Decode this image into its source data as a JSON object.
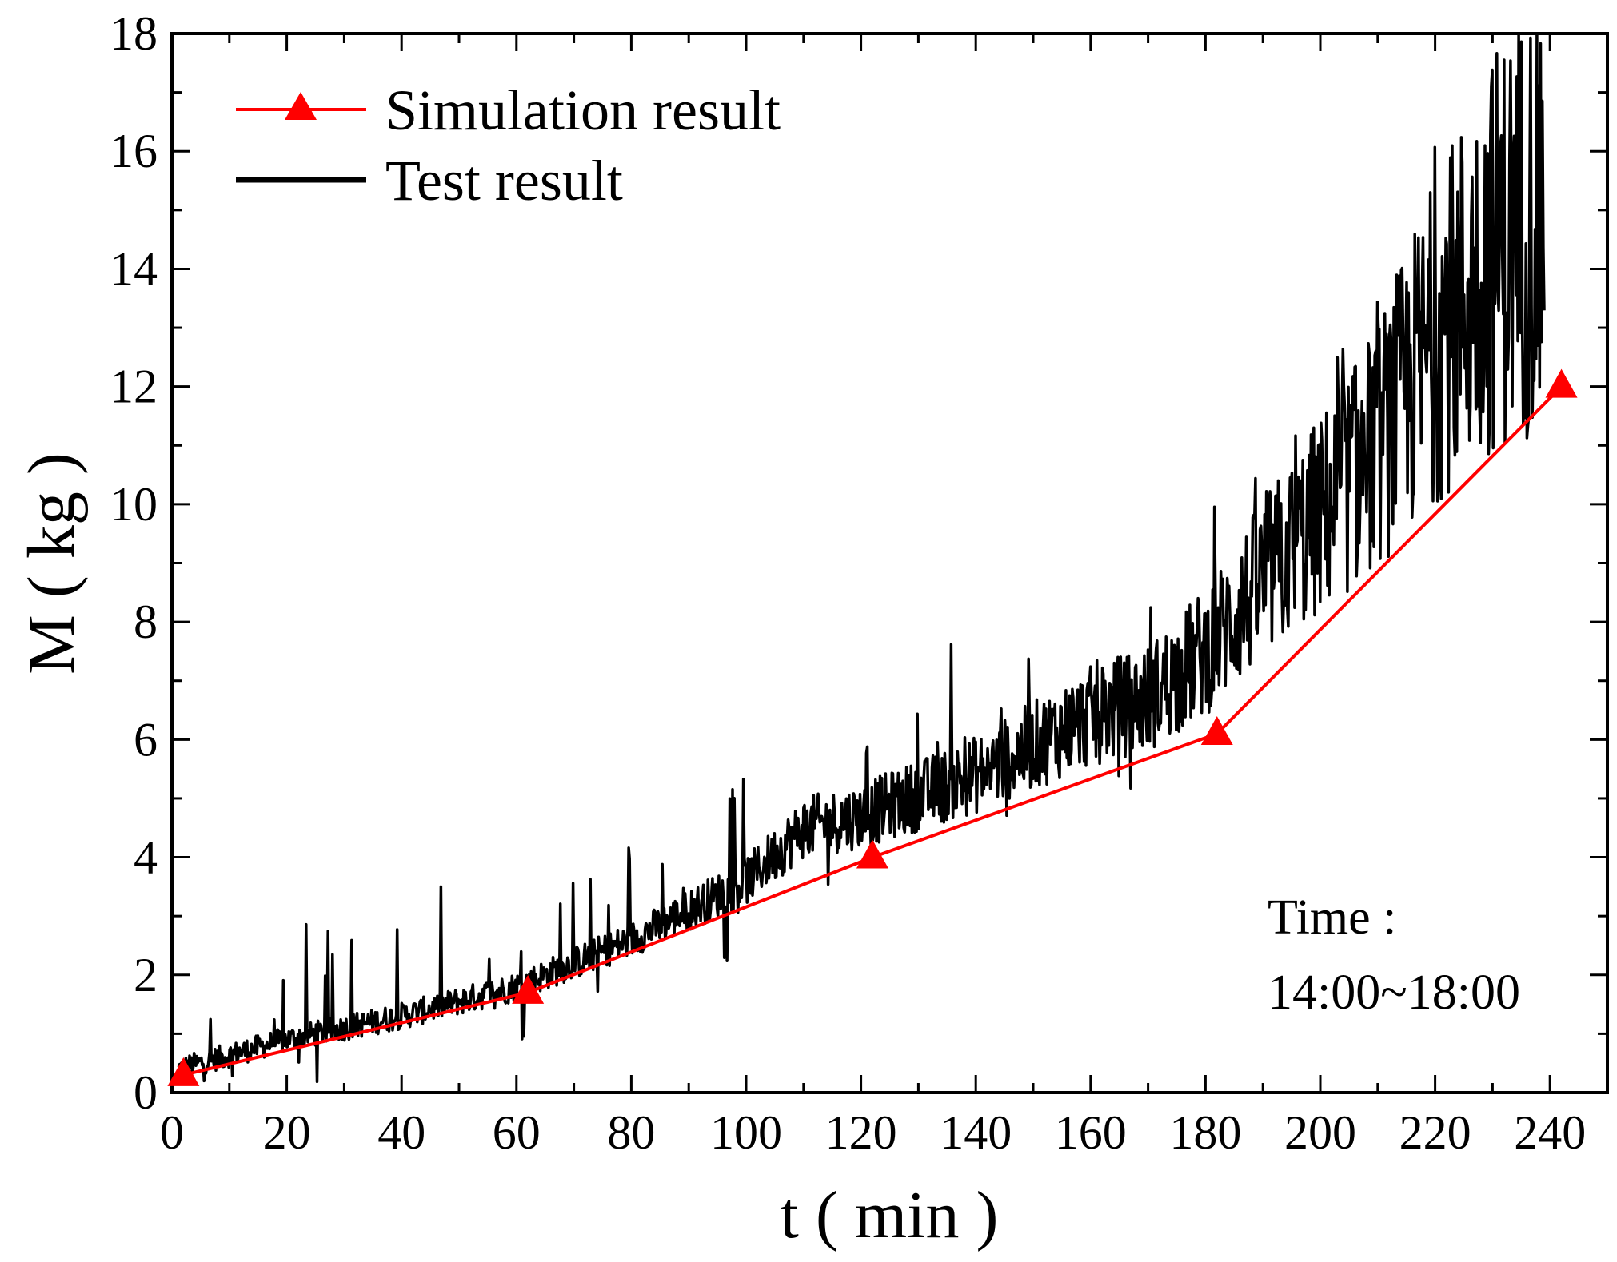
{
  "chart_data": {
    "type": "line",
    "title": "",
    "xlabel": "t ( min )",
    "ylabel": "M ( kg )",
    "xlim": [
      0,
      250
    ],
    "ylim": [
      0,
      18
    ],
    "xticks": [
      0,
      20,
      40,
      60,
      80,
      100,
      120,
      140,
      160,
      180,
      200,
      220,
      240
    ],
    "yticks": [
      0,
      2,
      4,
      6,
      8,
      10,
      12,
      14,
      16,
      18
    ],
    "grid": false,
    "legend": {
      "position": "top-left",
      "entries": [
        "Simulation result",
        "Test result"
      ]
    },
    "annotation": {
      "line1": "Time :",
      "line2": "14:00~18:00"
    },
    "series": [
      {
        "name": "Simulation result",
        "color": "#ff0000",
        "marker": "triangle",
        "x": [
          2,
          62,
          122,
          182,
          242
        ],
        "y": [
          0.3,
          1.7,
          4.0,
          6.1,
          12.0
        ]
      },
      {
        "name": "Test result",
        "color": "#000000",
        "marker": "none",
        "noisy": true,
        "trend_x": [
          1,
          20,
          40,
          60,
          80,
          100,
          110,
          120,
          140,
          160,
          170,
          180,
          190,
          200,
          210,
          220,
          230,
          239
        ],
        "trend_y": [
          0.4,
          0.9,
          1.3,
          1.8,
          2.6,
          3.6,
          4.5,
          4.7,
          5.4,
          6.4,
          6.7,
          7.5,
          8.7,
          9.8,
          11.0,
          12.8,
          14.3,
          15.1
        ]
      }
    ]
  }
}
